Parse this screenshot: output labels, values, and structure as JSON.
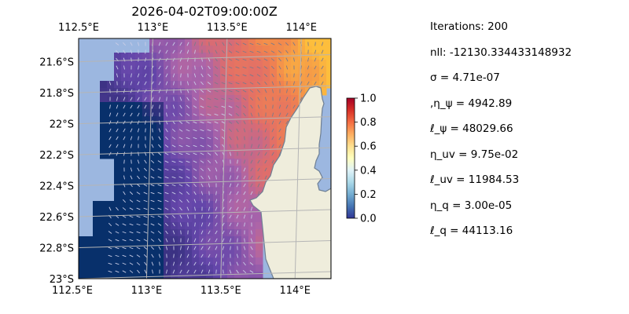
{
  "chart_data": {
    "type": "heatmap",
    "title": "2026-04-02T09:00:00Z",
    "xlabel": "",
    "ylabel": "",
    "x_range_deg_E": [
      112.5,
      114.2
    ],
    "y_range_deg_S": [
      21.45,
      23.0
    ],
    "x_ticks": [
      "112.5°E",
      "113°E",
      "113.5°E",
      "114°E"
    ],
    "x_tick_values": [
      112.5,
      113.0,
      113.5,
      114.0
    ],
    "y_ticks": [
      "21.6°S",
      "21.8°S",
      "22°S",
      "22.2°S",
      "22.4°S",
      "22.6°S",
      "22.8°S",
      "23°S"
    ],
    "y_tick_values": [
      -21.6,
      -21.8,
      -22.0,
      -22.2,
      -22.4,
      -22.6,
      -22.8,
      -23.0
    ],
    "colorbar": {
      "range": [
        0.0,
        1.0
      ],
      "ticks": [
        "0.0",
        "0.2",
        "0.4",
        "0.6",
        "0.8",
        "1.0"
      ],
      "tick_values": [
        0.0,
        0.2,
        0.4,
        0.6,
        0.8,
        1.0
      ],
      "colormap": "RdYlBu_r"
    },
    "grid": true,
    "layers": [
      "ocean",
      "land",
      "field",
      "vectors"
    ],
    "colors": {
      "ocean": "#9cb7e0",
      "land": "#efeddc",
      "coast": "#6e7f94"
    }
  },
  "params": {
    "iterations": "Iterations: 200",
    "nll": "nll: -12130.334433148932",
    "sigma": "σ = 4.71e-07",
    "eta_psi": ",η_ψ = 4942.89",
    "ell_psi": "ℓ_ψ = 48029.66",
    "eta_uv": "η_uv = 9.75e-02",
    "ell_uv": "ℓ_uv = 11984.53",
    "eta_q": "η_q = 3.00e-05",
    "ell_q": "ℓ_q = 44113.16"
  }
}
